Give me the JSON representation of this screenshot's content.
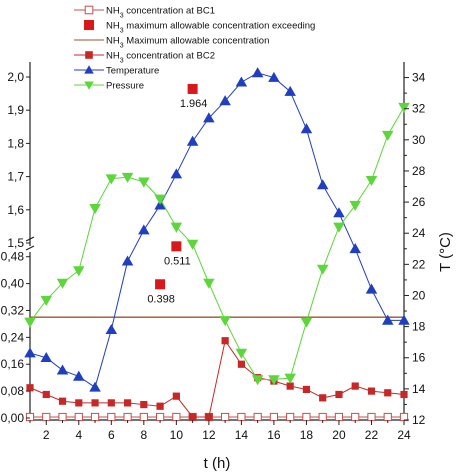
{
  "chart_data": {
    "type": "line",
    "x": [
      1,
      2,
      3,
      4,
      5,
      6,
      7,
      8,
      9,
      10,
      11,
      12,
      13,
      14,
      15,
      16,
      17,
      18,
      19,
      20,
      21,
      22,
      23,
      24
    ],
    "xlabel": "t (h)",
    "xlim": [
      1,
      24
    ],
    "xticks": [
      "2",
      "4",
      "6",
      "8",
      "10",
      "12",
      "14",
      "16",
      "18",
      "20",
      "22",
      "24"
    ],
    "ylabel_right": "T (°C)",
    "y_left_broken": true,
    "y_left_lower_range": [
      0,
      0.5
    ],
    "y_left_upper_range": [
      1.5,
      2.0
    ],
    "y_left_ticks_lower": [
      "0,00",
      "0,08",
      "0,16",
      "0,24",
      "0,32",
      "0,40",
      "0,48"
    ],
    "y_left_ticks_upper": [
      "1,5",
      "1,6",
      "1,7",
      "1,8",
      "1,9",
      "2,0"
    ],
    "y_right_range": [
      12,
      35
    ],
    "y_right_ticks": [
      "12",
      "14",
      "16",
      "18",
      "20",
      "22",
      "24",
      "26",
      "28",
      "30",
      "32",
      "34"
    ],
    "legend": [
      "NH3 concentration at BC1",
      "NH3 maximum allowable concentration exceeding",
      "NH3 Maximum allowable concentration",
      "NH3 concentration at BC2",
      "Temperature",
      "Pressure"
    ],
    "series": [
      {
        "name": "NH3 concentration at BC1",
        "axis": "left",
        "color": "#c0504d",
        "marker": "open-square",
        "values": [
          0.003,
          0.003,
          0.003,
          0.003,
          0.003,
          0.003,
          0.003,
          0.003,
          0.003,
          0.003,
          0.003,
          0.003,
          0.003,
          0.003,
          0.003,
          0.003,
          0.003,
          0.003,
          0.003,
          0.003,
          0.003,
          0.003,
          0.003,
          0.003
        ]
      },
      {
        "name": "NH3 concentration at BC2",
        "axis": "left",
        "color": "#c62828",
        "marker": "filled-square",
        "values": [
          0.09,
          0.07,
          0.05,
          0.045,
          0.045,
          0.045,
          0.045,
          0.04,
          0.035,
          0.065,
          0.003,
          0.003,
          0.23,
          0.16,
          0.12,
          0.11,
          0.095,
          0.085,
          0.06,
          0.07,
          0.095,
          0.08,
          0.075,
          0.07
        ]
      },
      {
        "name": "NH3 Maximum allowable concentration",
        "axis": "left",
        "color": "#a0522d",
        "marker": "none",
        "values": [
          0.3,
          0.3,
          0.3,
          0.3,
          0.3,
          0.3,
          0.3,
          0.3,
          0.3,
          0.3,
          0.3,
          0.3,
          0.3,
          0.3,
          0.3,
          0.3,
          0.3,
          0.3,
          0.3,
          0.3,
          0.3,
          0.3,
          0.3,
          0.3
        ]
      },
      {
        "name": "Temperature",
        "axis": "right",
        "color": "#1f3fbf",
        "marker": "triangle-up",
        "values": [
          16.3,
          16.0,
          15.2,
          14.8,
          14.1,
          17.8,
          22.2,
          24.2,
          25.8,
          27.8,
          29.9,
          31.4,
          32.5,
          33.7,
          34.3,
          34.0,
          33.1,
          30.7,
          27.1,
          25.3,
          23.0,
          20.4,
          18.4,
          18.4
        ]
      },
      {
        "name": "Pressure",
        "axis": "right",
        "color": "#5cd63a",
        "marker": "triangle-down",
        "values": [
          18.3,
          19.7,
          20.8,
          21.6,
          25.6,
          27.5,
          27.6,
          27.3,
          26.2,
          24.4,
          23.3,
          20.8,
          18.4,
          16.3,
          14.6,
          14.6,
          14.7,
          18.3,
          21.7,
          24.4,
          25.8,
          27.4,
          30.3,
          32.1
        ]
      }
    ],
    "exceeding_points": {
      "name": "NH3 maximum allowable concentration exceeding",
      "color": "#d7191c",
      "marker": "filled-square",
      "points": [
        {
          "x": 9,
          "y": 0.398,
          "label": "0.398"
        },
        {
          "x": 10,
          "y": 0.511,
          "label": "0.511"
        },
        {
          "x": 11,
          "y": 1.964,
          "label": "1.964"
        }
      ]
    },
    "grid": false,
    "legend_position": "top-left"
  }
}
